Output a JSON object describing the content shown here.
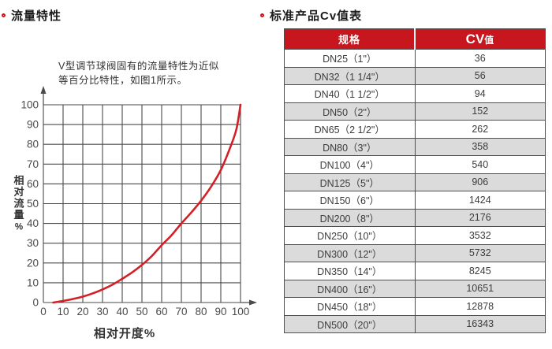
{
  "accent_color": "#c8161e",
  "left_section": {
    "title": "流量特性",
    "annotation": [
      "V型调节球阀固有的流量特性为近似",
      "等百分比特性，如图1所示。"
    ]
  },
  "right_section": {
    "title": "标准产品Cv值表"
  },
  "chart_data": {
    "type": "line",
    "title": "",
    "xlabel": "相对开度%",
    "ylabel": "相对流量%",
    "xlim": [
      0,
      100
    ],
    "ylim": [
      0,
      100
    ],
    "xticks": [
      0,
      10,
      20,
      30,
      40,
      50,
      60,
      70,
      80,
      90,
      100
    ],
    "yticks": [
      0,
      10,
      20,
      30,
      40,
      50,
      60,
      70,
      80,
      90,
      100
    ],
    "grid": true,
    "grid_color": "#4a4a4a",
    "line_color": "#d31f26",
    "points": [
      [
        5,
        0
      ],
      [
        10,
        0.8
      ],
      [
        15,
        1.8
      ],
      [
        20,
        3
      ],
      [
        25,
        4.6
      ],
      [
        30,
        6.6
      ],
      [
        35,
        9
      ],
      [
        40,
        12
      ],
      [
        45,
        15.2
      ],
      [
        50,
        19
      ],
      [
        55,
        23.5
      ],
      [
        60,
        29
      ],
      [
        65,
        34
      ],
      [
        70,
        40
      ],
      [
        75,
        45.5
      ],
      [
        80,
        51.5
      ],
      [
        85,
        58.5
      ],
      [
        90,
        67
      ],
      [
        95,
        79
      ],
      [
        98,
        88
      ],
      [
        100,
        100
      ]
    ]
  },
  "table": {
    "col_spec": "规格",
    "col_cv_main": "CV",
    "col_cv_sub": "值",
    "header_bg": "#c8161e",
    "stripe_color": "#dbdbdb",
    "rows": [
      [
        "DN25（1\"）",
        "36"
      ],
      [
        "DN32（1 1/4\"）",
        "56"
      ],
      [
        "DN40（1 1/2\"）",
        "94"
      ],
      [
        "DN50（2\"）",
        "152"
      ],
      [
        "DN65（2 1/2\"）",
        "262"
      ],
      [
        "DN80（3\"）",
        "358"
      ],
      [
        "DN100（4\"）",
        "540"
      ],
      [
        "DN125（5\"）",
        "906"
      ],
      [
        "DN150（6\"）",
        "1424"
      ],
      [
        "DN200（8\"）",
        "2176"
      ],
      [
        "DN250（10\"）",
        "3532"
      ],
      [
        "DN300（12\"）",
        "5732"
      ],
      [
        "DN350（14\"）",
        "8245"
      ],
      [
        "DN400（16\"）",
        "10651"
      ],
      [
        "DN450（18\"）",
        "12878"
      ],
      [
        "DN500（20\"）",
        "16343"
      ]
    ]
  }
}
